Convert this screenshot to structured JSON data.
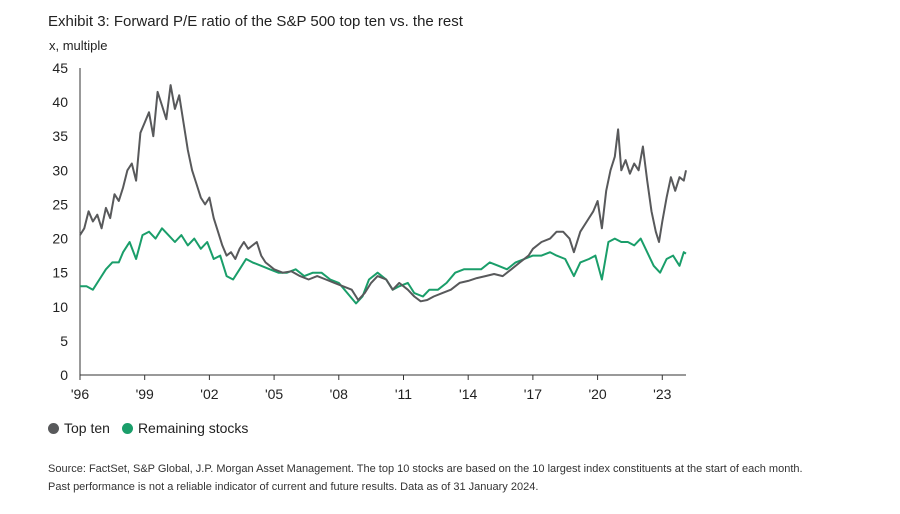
{
  "chart_data": {
    "type": "line",
    "title": "Exhibit 3: Forward P/E ratio of the S&P 500 top ten vs. the rest",
    "unit_label": "x, multiple",
    "ylim": [
      0,
      45
    ],
    "y_ticks": [
      "0",
      "5",
      "10",
      "15",
      "20",
      "25",
      "30",
      "35",
      "40",
      "45"
    ],
    "x_range": [
      1996,
      2024.1
    ],
    "x_ticks": [
      {
        "year": 1996,
        "label": "'96"
      },
      {
        "year": 1999,
        "label": "'99"
      },
      {
        "year": 2002,
        "label": "'02"
      },
      {
        "year": 2005,
        "label": "'05"
      },
      {
        "year": 2008,
        "label": "'08"
      },
      {
        "year": 2011,
        "label": "'11"
      },
      {
        "year": 2014,
        "label": "'14"
      },
      {
        "year": 2017,
        "label": "'17"
      },
      {
        "year": 2020,
        "label": "'20"
      },
      {
        "year": 2023,
        "label": "'23"
      }
    ],
    "series": [
      {
        "name": "Top ten",
        "color": "#58595b",
        "points": [
          [
            1996.0,
            20.5
          ],
          [
            1996.2,
            21.5
          ],
          [
            1996.4,
            24.0
          ],
          [
            1996.6,
            22.5
          ],
          [
            1996.8,
            23.5
          ],
          [
            1997.0,
            21.5
          ],
          [
            1997.2,
            24.5
          ],
          [
            1997.4,
            23.0
          ],
          [
            1997.6,
            26.5
          ],
          [
            1997.8,
            25.5
          ],
          [
            1998.0,
            27.5
          ],
          [
            1998.2,
            30.0
          ],
          [
            1998.4,
            31.0
          ],
          [
            1998.6,
            28.5
          ],
          [
            1998.8,
            35.5
          ],
          [
            1999.0,
            37.0
          ],
          [
            1999.2,
            38.5
          ],
          [
            1999.4,
            35.0
          ],
          [
            1999.6,
            41.5
          ],
          [
            1999.8,
            39.5
          ],
          [
            2000.0,
            37.5
          ],
          [
            2000.2,
            42.5
          ],
          [
            2000.4,
            39.0
          ],
          [
            2000.6,
            41.0
          ],
          [
            2000.8,
            37.0
          ],
          [
            2001.0,
            33.0
          ],
          [
            2001.2,
            30.0
          ],
          [
            2001.4,
            28.0
          ],
          [
            2001.6,
            26.0
          ],
          [
            2001.8,
            25.0
          ],
          [
            2002.0,
            26.0
          ],
          [
            2002.2,
            23.0
          ],
          [
            2002.4,
            21.0
          ],
          [
            2002.6,
            19.0
          ],
          [
            2002.8,
            17.5
          ],
          [
            2003.0,
            18.0
          ],
          [
            2003.2,
            17.0
          ],
          [
            2003.4,
            18.5
          ],
          [
            2003.6,
            19.5
          ],
          [
            2003.8,
            18.5
          ],
          [
            2004.0,
            19.0
          ],
          [
            2004.2,
            19.5
          ],
          [
            2004.4,
            17.5
          ],
          [
            2004.6,
            16.5
          ],
          [
            2004.8,
            16.0
          ],
          [
            2005.0,
            15.5
          ],
          [
            2005.4,
            15.0
          ],
          [
            2005.8,
            15.2
          ],
          [
            2006.2,
            14.5
          ],
          [
            2006.6,
            14.0
          ],
          [
            2007.0,
            14.5
          ],
          [
            2007.4,
            14.0
          ],
          [
            2007.8,
            13.5
          ],
          [
            2008.2,
            13.0
          ],
          [
            2008.6,
            12.5
          ],
          [
            2008.9,
            11.0
          ],
          [
            2009.2,
            12.0
          ],
          [
            2009.5,
            13.5
          ],
          [
            2009.8,
            14.5
          ],
          [
            2010.2,
            14.0
          ],
          [
            2010.5,
            12.5
          ],
          [
            2010.8,
            13.5
          ],
          [
            2011.2,
            12.5
          ],
          [
            2011.5,
            11.5
          ],
          [
            2011.8,
            10.8
          ],
          [
            2012.1,
            11.0
          ],
          [
            2012.4,
            11.5
          ],
          [
            2012.8,
            12.0
          ],
          [
            2013.2,
            12.5
          ],
          [
            2013.6,
            13.5
          ],
          [
            2014.0,
            13.8
          ],
          [
            2014.4,
            14.2
          ],
          [
            2014.8,
            14.5
          ],
          [
            2015.2,
            14.8
          ],
          [
            2015.6,
            14.5
          ],
          [
            2016.0,
            15.5
          ],
          [
            2016.4,
            16.5
          ],
          [
            2016.8,
            17.5
          ],
          [
            2017.0,
            18.5
          ],
          [
            2017.4,
            19.5
          ],
          [
            2017.8,
            20.0
          ],
          [
            2018.1,
            21.0
          ],
          [
            2018.4,
            21.0
          ],
          [
            2018.7,
            20.0
          ],
          [
            2018.9,
            18.0
          ],
          [
            2019.2,
            21.0
          ],
          [
            2019.5,
            22.5
          ],
          [
            2019.8,
            24.0
          ],
          [
            2020.0,
            25.5
          ],
          [
            2020.2,
            21.5
          ],
          [
            2020.4,
            27.0
          ],
          [
            2020.6,
            30.0
          ],
          [
            2020.8,
            32.0
          ],
          [
            2020.95,
            36.0
          ],
          [
            2021.1,
            30.0
          ],
          [
            2021.3,
            31.5
          ],
          [
            2021.5,
            29.5
          ],
          [
            2021.7,
            31.0
          ],
          [
            2021.9,
            30.0
          ],
          [
            2022.1,
            33.5
          ],
          [
            2022.3,
            28.5
          ],
          [
            2022.5,
            24.0
          ],
          [
            2022.7,
            21.0
          ],
          [
            2022.85,
            19.5
          ],
          [
            2023.0,
            22.5
          ],
          [
            2023.2,
            26.0
          ],
          [
            2023.4,
            29.0
          ],
          [
            2023.6,
            27.0
          ],
          [
            2023.8,
            29.0
          ],
          [
            2024.0,
            28.5
          ],
          [
            2024.1,
            30.0
          ]
        ]
      },
      {
        "name": "Remaining stocks",
        "color": "#1a9e6a",
        "points": [
          [
            1996.0,
            13.0
          ],
          [
            1996.3,
            13.0
          ],
          [
            1996.6,
            12.5
          ],
          [
            1996.9,
            14.0
          ],
          [
            1997.2,
            15.5
          ],
          [
            1997.5,
            16.5
          ],
          [
            1997.8,
            16.5
          ],
          [
            1998.0,
            18.0
          ],
          [
            1998.3,
            19.5
          ],
          [
            1998.6,
            17.0
          ],
          [
            1998.9,
            20.5
          ],
          [
            1999.2,
            21.0
          ],
          [
            1999.5,
            20.0
          ],
          [
            1999.8,
            21.5
          ],
          [
            2000.1,
            20.5
          ],
          [
            2000.4,
            19.5
          ],
          [
            2000.7,
            20.5
          ],
          [
            2001.0,
            19.0
          ],
          [
            2001.3,
            20.0
          ],
          [
            2001.6,
            18.5
          ],
          [
            2001.9,
            19.5
          ],
          [
            2002.2,
            17.0
          ],
          [
            2002.5,
            17.5
          ],
          [
            2002.8,
            14.5
          ],
          [
            2003.1,
            14.0
          ],
          [
            2003.4,
            15.5
          ],
          [
            2003.7,
            17.0
          ],
          [
            2004.0,
            16.5
          ],
          [
            2004.4,
            16.0
          ],
          [
            2004.8,
            15.5
          ],
          [
            2005.2,
            15.0
          ],
          [
            2005.6,
            15.0
          ],
          [
            2006.0,
            15.5
          ],
          [
            2006.4,
            14.5
          ],
          [
            2006.8,
            15.0
          ],
          [
            2007.2,
            15.0
          ],
          [
            2007.6,
            14.0
          ],
          [
            2008.0,
            13.5
          ],
          [
            2008.4,
            12.0
          ],
          [
            2008.8,
            10.5
          ],
          [
            2009.1,
            11.5
          ],
          [
            2009.4,
            14.0
          ],
          [
            2009.8,
            15.0
          ],
          [
            2010.2,
            14.0
          ],
          [
            2010.5,
            12.5
          ],
          [
            2010.8,
            13.0
          ],
          [
            2011.2,
            13.5
          ],
          [
            2011.5,
            12.0
          ],
          [
            2011.9,
            11.5
          ],
          [
            2012.2,
            12.5
          ],
          [
            2012.6,
            12.5
          ],
          [
            2013.0,
            13.5
          ],
          [
            2013.4,
            15.0
          ],
          [
            2013.8,
            15.5
          ],
          [
            2014.2,
            15.5
          ],
          [
            2014.6,
            15.5
          ],
          [
            2015.0,
            16.5
          ],
          [
            2015.4,
            16.0
          ],
          [
            2015.8,
            15.5
          ],
          [
            2016.2,
            16.5
          ],
          [
            2016.6,
            17.0
          ],
          [
            2017.0,
            17.5
          ],
          [
            2017.4,
            17.5
          ],
          [
            2017.8,
            18.0
          ],
          [
            2018.1,
            17.5
          ],
          [
            2018.5,
            17.0
          ],
          [
            2018.9,
            14.5
          ],
          [
            2019.2,
            16.5
          ],
          [
            2019.6,
            17.0
          ],
          [
            2019.9,
            17.5
          ],
          [
            2020.2,
            14.0
          ],
          [
            2020.5,
            19.5
          ],
          [
            2020.8,
            20.0
          ],
          [
            2021.1,
            19.5
          ],
          [
            2021.4,
            19.5
          ],
          [
            2021.7,
            19.0
          ],
          [
            2022.0,
            20.0
          ],
          [
            2022.3,
            18.0
          ],
          [
            2022.6,
            16.0
          ],
          [
            2022.9,
            15.0
          ],
          [
            2023.2,
            17.0
          ],
          [
            2023.5,
            17.5
          ],
          [
            2023.8,
            16.0
          ],
          [
            2024.0,
            18.0
          ],
          [
            2024.1,
            17.8
          ]
        ]
      }
    ]
  },
  "footnote": {
    "line1": "Source: FactSet, S&P Global, J.P. Morgan Asset Management. The top 10 stocks are based on the 10 largest index constituents at the start of each month.",
    "line2": "Past performance is not a reliable indicator of current and future results. Data as of 31 January 2024."
  }
}
